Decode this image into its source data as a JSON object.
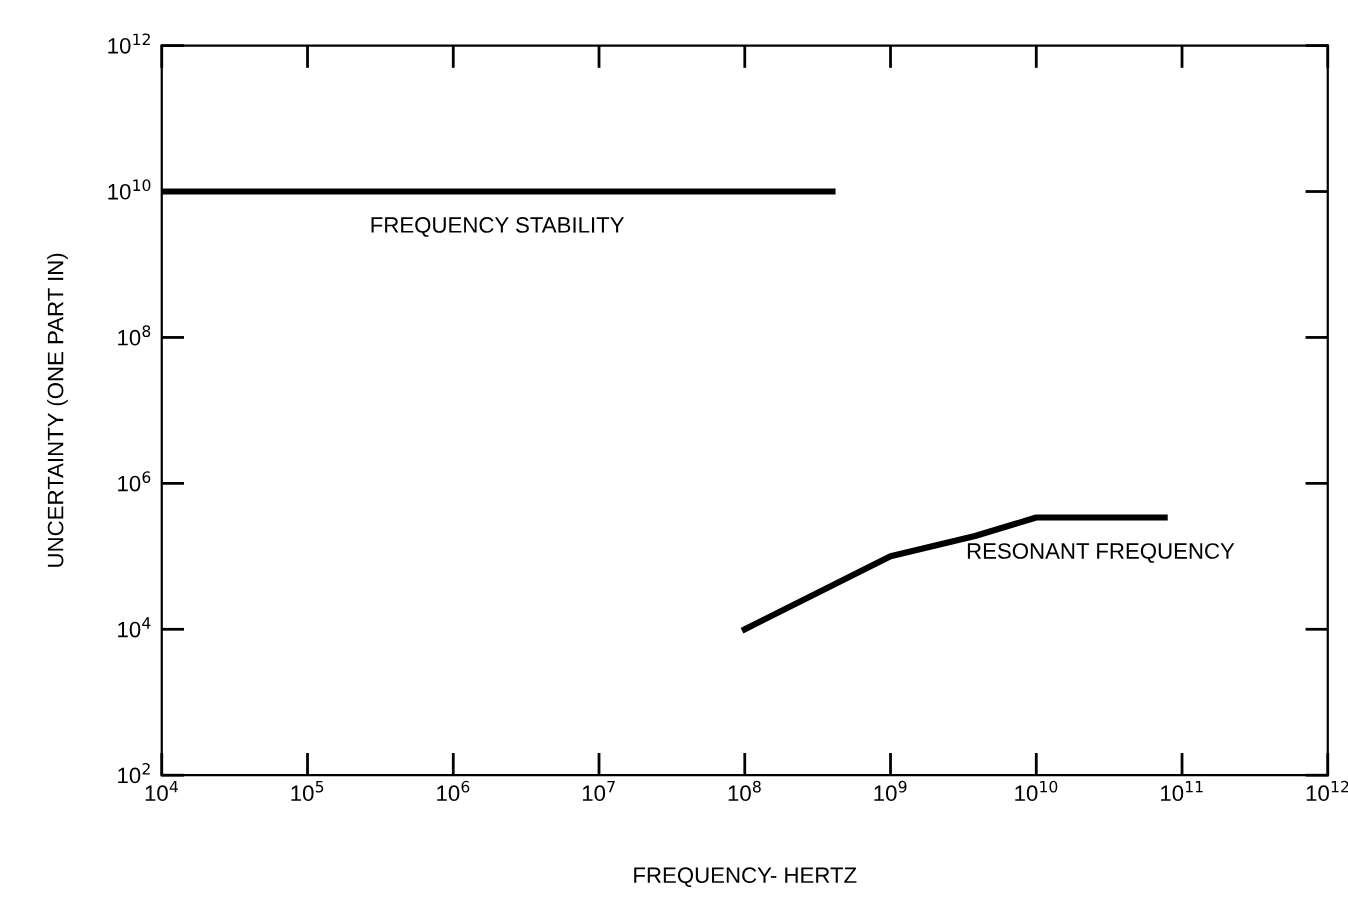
{
  "chart_data": {
    "type": "line",
    "xlabel": "FREQUENCY- HERTZ",
    "ylabel": "UNCERTAINTY (ONE PART IN)",
    "log": "xy",
    "grid": false,
    "legend": false,
    "marker": "none",
    "line_style": "solid",
    "xlim": [
      10000.0,
      1000000000000.0
    ],
    "ylim": [
      100.0,
      1000000000000.0
    ],
    "xticks": [
      {
        "value": 10000.0,
        "label": "10$^{4}$"
      },
      {
        "value": 100000.0,
        "label": "10$^{5}$"
      },
      {
        "value": 1000000.0,
        "label": "10$^{6}$"
      },
      {
        "value": 10000000.0,
        "label": "10$^{7}$"
      },
      {
        "value": 100000000.0,
        "label": "10$^{8}$"
      },
      {
        "value": 1000000000.0,
        "label": "10$^{9}$"
      },
      {
        "value": 10000000000.0,
        "label": "10$^{10}$"
      },
      {
        "value": 100000000000.0,
        "label": "10$^{11}$"
      },
      {
        "value": 1000000000000.0,
        "label": "10$^{12}$"
      }
    ],
    "yticks": [
      {
        "value": 100.0,
        "label": "10$^{2}$"
      },
      {
        "value": 10000.0,
        "label": "10$^{4}$"
      },
      {
        "value": 1000000.0,
        "label": "10$^{6}$"
      },
      {
        "value": 100000000.0,
        "label": "10$^{8}$"
      },
      {
        "value": 10000000000.0,
        "label": "10$^{10}$"
      },
      {
        "value": 1000000000000.0,
        "label": "10$^{12}$"
      }
    ],
    "series": [
      {
        "name": "FREQUENCY STABILITY",
        "color": "#000000",
        "x": [
          10000.0,
          400000000.0
        ],
        "values": [
          10000000000.0,
          10000000000.0
        ]
      },
      {
        "name": "RESONANT FREQUENCY",
        "color": "#000000",
        "x": [
          100000000.0,
          1000000000.0,
          3800000000.0,
          10000000000.0,
          76000000000.0
        ],
        "values": [
          10000.0,
          100000.0,
          190000.0,
          340000.0,
          340000.0
        ]
      }
    ]
  }
}
